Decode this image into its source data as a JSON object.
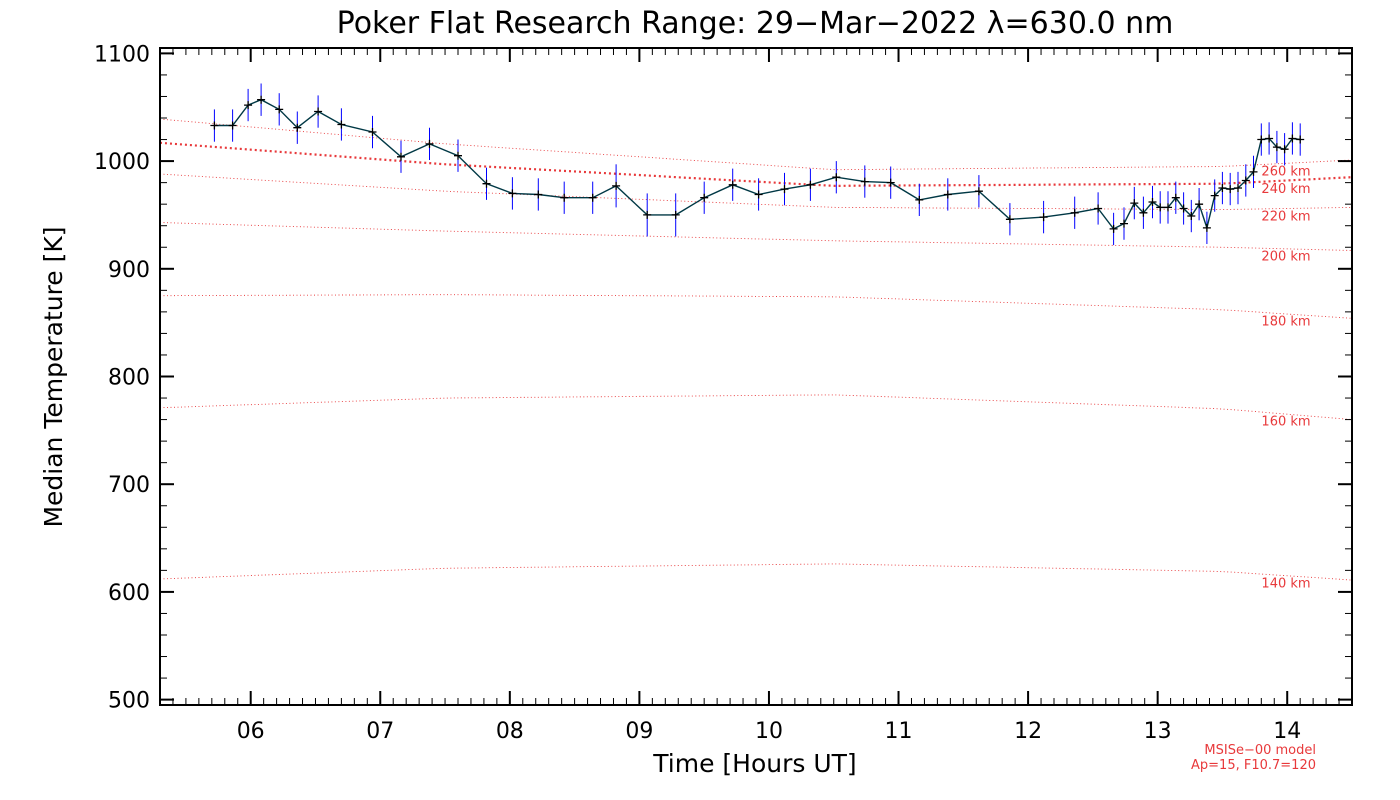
{
  "chart_data": {
    "type": "line",
    "title": "Poker Flat Research Range: 29−Mar−2022 λ=630.0 nm",
    "xlabel": "Time [Hours UT]",
    "ylabel": "Median Temperature [K]",
    "xlim": [
      5.3,
      14.5
    ],
    "ylim": [
      495,
      1105
    ],
    "x_ticks": [
      6,
      7,
      8,
      9,
      10,
      11,
      12,
      13,
      14
    ],
    "x_tick_labels": [
      "06",
      "07",
      "08",
      "09",
      "10",
      "11",
      "12",
      "13",
      "14"
    ],
    "y_ticks": [
      500,
      600,
      700,
      800,
      900,
      1000,
      1100
    ],
    "y_tick_labels": [
      "500",
      "600",
      "700",
      "800",
      "900",
      "1000",
      "1100"
    ],
    "series": [
      {
        "name": "Median Temperature",
        "color": "#003845",
        "error_color": "#0000ff",
        "x": [
          5.72,
          5.86,
          5.98,
          6.08,
          6.22,
          6.36,
          6.52,
          6.7,
          6.94,
          7.16,
          7.38,
          7.6,
          7.82,
          8.02,
          8.22,
          8.42,
          8.64,
          8.82,
          9.06,
          9.28,
          9.5,
          9.72,
          9.92,
          10.12,
          10.32,
          10.52,
          10.74,
          10.94,
          11.16,
          11.38,
          11.62,
          11.86,
          12.12,
          12.36,
          12.54,
          12.66,
          12.74,
          12.82,
          12.89,
          12.96,
          13.02,
          13.08,
          13.14,
          13.2,
          13.26,
          13.32,
          13.38,
          13.44,
          13.5,
          13.56,
          13.62,
          13.68,
          13.74,
          13.8,
          13.86,
          13.92,
          13.98,
          14.04,
          14.1
        ],
        "y": [
          1033,
          1033,
          1052,
          1057,
          1048,
          1031,
          1046,
          1034,
          1027,
          1004,
          1016,
          1005,
          979,
          970,
          969,
          966,
          966,
          977,
          950,
          950,
          966,
          978,
          969,
          974,
          978,
          985,
          981,
          980,
          964,
          969,
          972,
          946,
          948,
          952,
          956,
          937,
          942,
          961,
          952,
          962,
          957,
          957,
          966,
          956,
          949,
          960,
          938,
          968,
          975,
          974,
          975,
          982,
          990,
          1020,
          1021,
          1013,
          1011,
          1021,
          1020
        ],
        "err": [
          15,
          15,
          15,
          15,
          15,
          15,
          15,
          15,
          15,
          15,
          15,
          15,
          15,
          15,
          15,
          15,
          15,
          20,
          20,
          20,
          15,
          15,
          15,
          15,
          15,
          15,
          15,
          15,
          15,
          15,
          15,
          15,
          15,
          15,
          15,
          15,
          15,
          15,
          15,
          15,
          15,
          15,
          15,
          15,
          15,
          15,
          15,
          15,
          15,
          15,
          15,
          15,
          15,
          15,
          15,
          15,
          15,
          15,
          15
        ]
      }
    ],
    "model_curves": [
      {
        "label": "260 km",
        "x": [
          5.3,
          7.5,
          10.5,
          13.5,
          14.5
        ],
        "y": [
          1039,
          1016,
          992,
          995,
          1001
        ],
        "style": "thin"
      },
      {
        "label": "240 km",
        "x": [
          5.3,
          7.5,
          10.5,
          13.5,
          14.5
        ],
        "y": [
          1017,
          997,
          977,
          979,
          985
        ],
        "style": "thick"
      },
      {
        "label": "220 km",
        "x": [
          5.3,
          7.5,
          10.5,
          13.5,
          14.5
        ],
        "y": [
          988,
          972,
          957,
          955,
          957
        ],
        "style": "thin"
      },
      {
        "label": "200 km",
        "x": [
          5.3,
          7.5,
          10.5,
          13.5,
          14.5
        ],
        "y": [
          943,
          935,
          926,
          920,
          917
        ],
        "style": "thin"
      },
      {
        "label": "180 km",
        "x": [
          5.3,
          7.5,
          10.5,
          13.5,
          14.5
        ],
        "y": [
          875,
          876,
          874,
          862,
          854
        ],
        "style": "thin"
      },
      {
        "label": "160 km",
        "x": [
          5.3,
          7.5,
          10.5,
          13.5,
          14.5
        ],
        "y": [
          771,
          780,
          783,
          770,
          760
        ],
        "style": "thin"
      },
      {
        "label": "140 km",
        "x": [
          5.3,
          7.5,
          10.5,
          13.5,
          14.5
        ],
        "y": [
          612,
          622,
          626,
          619,
          611
        ],
        "style": "thin"
      }
    ],
    "model_color": "#e8393b",
    "model_note": [
      "MSISe−00 model",
      "Ap=15, F10.7=120"
    ]
  }
}
